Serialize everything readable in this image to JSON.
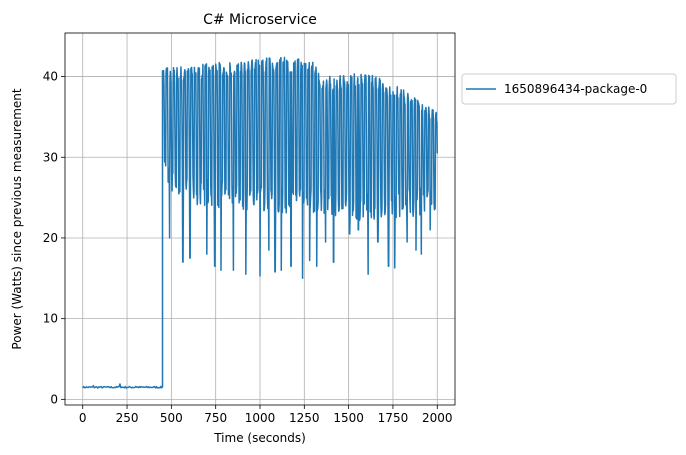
{
  "chart_data": {
    "type": "line",
    "title": "C# Microservice",
    "xlabel": "Time (seconds)",
    "ylabel": "Power (Watts) since previous measurement",
    "xlim": [
      -100,
      2100
    ],
    "ylim": [
      -0.7,
      45.4
    ],
    "xticks": [
      0,
      250,
      500,
      750,
      1000,
      1250,
      1500,
      1750,
      2000
    ],
    "yticks": [
      0,
      10,
      20,
      30,
      40
    ],
    "grid": true,
    "legend_position": "outside-right-top",
    "series": [
      {
        "name": "1650896434-package-0",
        "color": "#1f77b4",
        "baseline": {
          "x_start": 0,
          "x_end": 450,
          "y": 1.5,
          "spikes": [
            [
              60,
              1.7
            ],
            [
              210,
              1.9
            ],
            [
              300,
              1.6
            ]
          ]
        },
        "active": {
          "x_start": 450,
          "x_end": 2000,
          "period": 20,
          "envelope": [
            {
              "x": 450,
              "hi": 41.0,
              "lo": 26.5
            },
            {
              "x": 650,
              "hi": 41.5,
              "lo": 24.0
            },
            {
              "x": 900,
              "hi": 42.0,
              "lo": 23.5
            },
            {
              "x": 1100,
              "hi": 42.5,
              "lo": 23.0
            },
            {
              "x": 1300,
              "hi": 42.0,
              "lo": 23.0
            },
            {
              "x": 1350,
              "hi": 40.0,
              "lo": 23.0
            },
            {
              "x": 1600,
              "hi": 40.5,
              "lo": 22.0
            },
            {
              "x": 1800,
              "hi": 38.5,
              "lo": 22.5
            },
            {
              "x": 2000,
              "hi": 35.5,
              "lo": 23.0
            }
          ],
          "dips": [
            [
              490,
              20.0
            ],
            [
              565,
              17.0
            ],
            [
              605,
              17.5
            ],
            [
              700,
              18.0
            ],
            [
              745,
              16.5
            ],
            [
              780,
              16.0
            ],
            [
              850,
              16.0
            ],
            [
              920,
              15.5
            ],
            [
              1000,
              15.3
            ],
            [
              1050,
              18.5
            ],
            [
              1085,
              15.8
            ],
            [
              1120,
              16.0
            ],
            [
              1175,
              16.5
            ],
            [
              1240,
              15.0
            ],
            [
              1280,
              17.2
            ],
            [
              1320,
              16.5
            ],
            [
              1370,
              19.5
            ],
            [
              1415,
              17.0
            ],
            [
              1505,
              20.5
            ],
            [
              1555,
              21.0
            ],
            [
              1610,
              15.5
            ],
            [
              1665,
              19.5
            ],
            [
              1725,
              16.5
            ],
            [
              1760,
              16.3
            ],
            [
              1830,
              19.5
            ],
            [
              1880,
              18.5
            ],
            [
              1910,
              18.0
            ],
            [
              1960,
              21.0
            ]
          ]
        }
      }
    ]
  }
}
